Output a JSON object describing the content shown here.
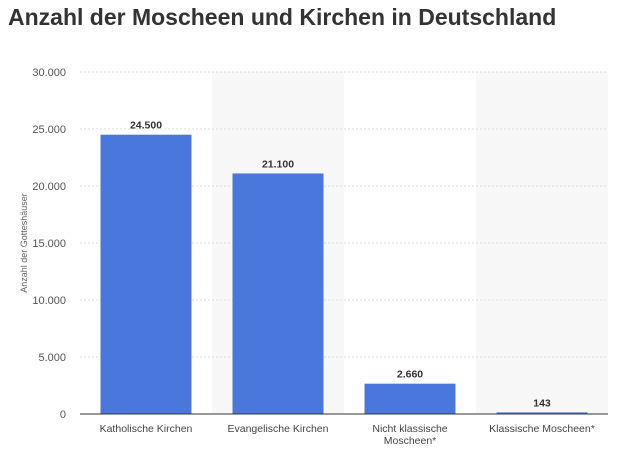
{
  "title": "Anzahl der Moscheen und Kirchen in Deutschland",
  "chart_data": {
    "type": "bar",
    "title": "Anzahl der Moscheen und Kirchen in Deutschland",
    "ylabel": "Anzahl der Gotteshäuser",
    "xlabel": "",
    "categories": [
      [
        "Katholische Kirchen"
      ],
      [
        "Evangelische Kirchen"
      ],
      [
        "Nicht klassische",
        "Moscheen*"
      ],
      [
        "Klassische Moscheen*"
      ]
    ],
    "values": [
      24500,
      21100,
      2660,
      143
    ],
    "value_labels": [
      "24.500",
      "21.100",
      "2.660",
      "143"
    ],
    "ylim": [
      0,
      30000
    ],
    "yticks": [
      0,
      5000,
      10000,
      15000,
      20000,
      25000,
      30000
    ],
    "ytick_labels": [
      "0",
      "5.000",
      "10.000",
      "15.000",
      "20.000",
      "25.000",
      "30.000"
    ],
    "grid": true,
    "bar_color": "#4a77dc",
    "alt_band_color": "#f7f7f7"
  }
}
